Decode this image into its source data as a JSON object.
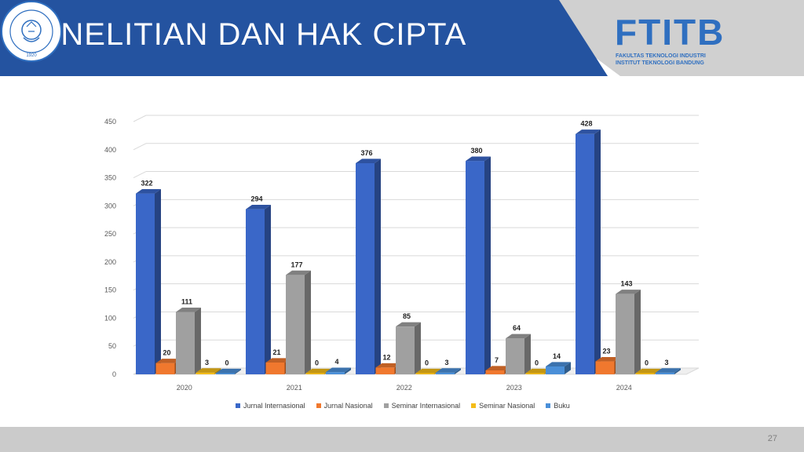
{
  "header": {
    "title": "PENELITIAN DAN HAK CIPTA",
    "logo_text": "FTITB",
    "logo_line1": "FAKULTAS TEKNOLOGI INDUSTRI",
    "logo_line2": "INSTITUT TEKNOLOGI BANDUNG",
    "seal_text": "INSTITUT TEKNOLOGI BANDUNG",
    "seal_year": "1920",
    "bg_color": "#2453a0",
    "accent_gray": "#d0d0d0"
  },
  "footer": {
    "page_number": "27"
  },
  "chart_data": {
    "type": "bar",
    "style": "3d clustered column",
    "categories": [
      "2020",
      "2021",
      "2022",
      "2023",
      "2024"
    ],
    "series": [
      {
        "name": "Jurnal Internasional",
        "color": "#3a67c8",
        "values": [
          322,
          294,
          376,
          380,
          428
        ]
      },
      {
        "name": "Jurnal Nasional",
        "color": "#f0782e",
        "values": [
          20,
          21,
          12,
          7,
          23
        ]
      },
      {
        "name": "Seminar Internasional",
        "color": "#a0a0a0",
        "values": [
          111,
          177,
          85,
          64,
          143
        ]
      },
      {
        "name": "Seminar Nasional",
        "color": "#f4bc18",
        "values": [
          3,
          0,
          0,
          0,
          0
        ]
      },
      {
        "name": "Buku",
        "color": "#4a8fd8",
        "values": [
          0,
          4,
          3,
          14,
          3
        ]
      }
    ],
    "y_ticks": [
      "0",
      "50",
      "100",
      "150",
      "200",
      "250",
      "300",
      "350",
      "400",
      "450"
    ],
    "ylim": [
      0,
      450
    ],
    "grid": true,
    "legend_position": "bottom"
  }
}
